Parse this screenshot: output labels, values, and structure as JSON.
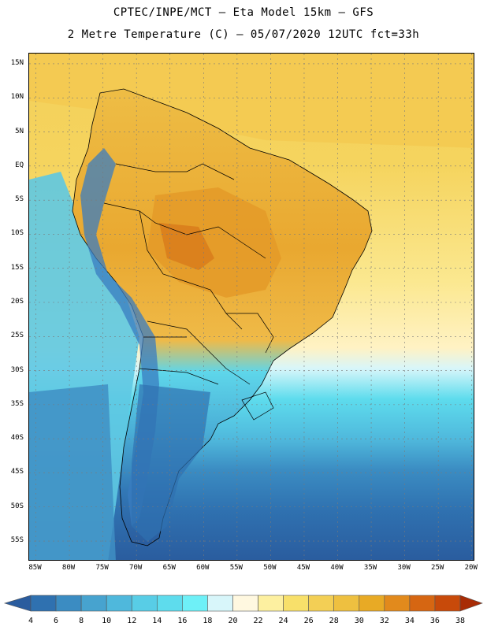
{
  "header": {
    "title_line1": "CPTEC/INPE/MCT –  Eta Model 15km – GFS",
    "title_line2": "2 Metre Temperature (C) – 05/07/2020 12UTC fct=33h"
  },
  "map": {
    "lat_labels": [
      "15N",
      "10N",
      "5N",
      "EQ",
      "5S",
      "10S",
      "15S",
      "20S",
      "25S",
      "30S",
      "35S",
      "40S",
      "45S",
      "50S",
      "55S"
    ],
    "lon_labels": [
      "85W",
      "80W",
      "75W",
      "70W",
      "65W",
      "60W",
      "55W",
      "50W",
      "45W",
      "40W",
      "35W",
      "30W",
      "25W",
      "20W"
    ],
    "lat_range_deg": [
      -58,
      16.5
    ],
    "lon_range_deg": [
      -86,
      -19.5
    ]
  },
  "legend": {
    "levels": [
      "4",
      "6",
      "8",
      "10",
      "12",
      "14",
      "16",
      "18",
      "20",
      "22",
      "24",
      "26",
      "28",
      "30",
      "32",
      "34",
      "36",
      "38"
    ],
    "colors": [
      "#2a5c9e",
      "#2f71b0",
      "#3b8cc2",
      "#47a3cf",
      "#4fb8dc",
      "#58cde6",
      "#5edced",
      "#6ef0f7",
      "#d8f6fa",
      "#fff8e0",
      "#fdf0a0",
      "#f8e06a",
      "#f3cf55",
      "#eec040",
      "#e8aa25",
      "#e28a1c",
      "#d66612",
      "#c84a0a",
      "#a82c06"
    ],
    "ocean_color": "#2460a8",
    "south_color": "#3c92c4",
    "mid_ocean_color": "#55c8e0",
    "warm_band_color": "#f6dc68",
    "land_warm_color": "#efb840",
    "land_hot_color": "#e29828",
    "andes_color": "#3a7cc0"
  }
}
